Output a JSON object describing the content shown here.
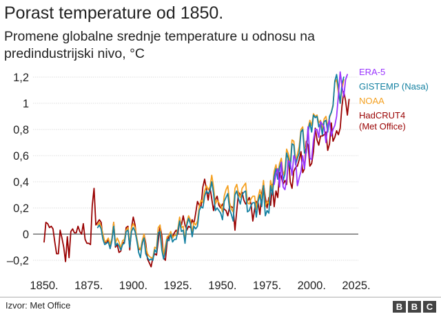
{
  "title": "Porast temperature od 1850.",
  "subtitle": "Promene globalne srednje temperature u odnosu na predindustrijski nivo, °C",
  "source": "Izvor: Met Office",
  "logo_letters": [
    "B",
    "B",
    "C"
  ],
  "chart_data": {
    "type": "line",
    "xlabel": "",
    "ylabel": "",
    "xlim": [
      1850,
      2021
    ],
    "ylim": [
      -0.27,
      1.24
    ],
    "x_ticks": [
      1850,
      1875,
      1900,
      1925,
      1950,
      1975,
      2000,
      2025
    ],
    "x_tick_labels": [
      "1850.",
      "1875.",
      "1900.",
      "1925.",
      "1950.",
      "1975.",
      "2000.",
      "2025."
    ],
    "y_ticks": [
      -0.2,
      0,
      0.2,
      0.4,
      0.6,
      0.8,
      1,
      1.2
    ],
    "y_tick_labels": [
      "–0,2",
      "0",
      "0,2",
      "0,4",
      "0,6",
      "0,8",
      "1",
      "1,2"
    ],
    "legend_position": "right",
    "series": [
      {
        "name": "HadCRUT4",
        "name_extra": "(Met Office)",
        "color": "#990000",
        "x_start": 1850,
        "values": [
          -0.06,
          0.09,
          0.08,
          0.05,
          0.06,
          0.04,
          -0.06,
          -0.15,
          -0.15,
          0.03,
          -0.03,
          -0.1,
          -0.21,
          -0.02,
          -0.18,
          0.02,
          0.04,
          0.01,
          0.01,
          0.06,
          0.02,
          0.0,
          0.08,
          -0.04,
          -0.07,
          -0.07,
          -0.08,
          0.22,
          0.35,
          0.07,
          0.09,
          0.11,
          0.09,
          -0.03,
          -0.06,
          -0.07,
          -0.04,
          -0.11,
          -0.04,
          0.09,
          -0.1,
          -0.08,
          -0.14,
          -0.13,
          -0.07,
          -0.06,
          0.05,
          0.06,
          -0.12,
          0.05,
          0.13,
          0.07,
          -0.05,
          -0.12,
          -0.11,
          -0.08,
          0.0,
          -0.07,
          -0.19,
          -0.22,
          -0.25,
          -0.18,
          -0.15,
          -0.16,
          -0.05,
          0.06,
          -0.01,
          -0.18,
          -0.2,
          -0.06,
          -0.01,
          -0.01,
          -0.02,
          0.01,
          0.03,
          0.0,
          0.1,
          0.07,
          0.14,
          0.07,
          0.03,
          0.06,
          0.05,
          0.11,
          0.08,
          0.16,
          0.25,
          0.22,
          0.21,
          0.36,
          0.42,
          0.34,
          0.26,
          0.36,
          0.27,
          0.18,
          0.26,
          0.29,
          0.22,
          0.2,
          0.23,
          0.19,
          0.18,
          0.14,
          0.21,
          0.21,
          0.2,
          0.03,
          0.18,
          0.32,
          0.3,
          0.32,
          0.26,
          0.23,
          0.25,
          0.28,
          0.23,
          0.1,
          0.19,
          0.25,
          0.24,
          0.15,
          0.31,
          0.39,
          0.28,
          0.2,
          0.28,
          0.22,
          0.38,
          0.21,
          0.33,
          0.28,
          0.47,
          0.44,
          0.38,
          0.41,
          0.38,
          0.6,
          0.4,
          0.35,
          0.48,
          0.51,
          0.52,
          0.57,
          0.63,
          0.47,
          0.5,
          0.71,
          0.68,
          0.52,
          0.54,
          0.63,
          0.81,
          0.72,
          0.68,
          0.75,
          0.75,
          0.76,
          0.78,
          0.64,
          0.69,
          0.85,
          0.71,
          0.74,
          0.79,
          0.76,
          0.81,
          0.98,
          1.09,
          1.02,
          0.91,
          1.03
        ]
      },
      {
        "name": "NOAA",
        "color": "#f4a020",
        "x_start": 1880,
        "values": [
          0.07,
          0.09,
          0.06,
          0.0,
          -0.06,
          -0.05,
          -0.03,
          -0.08,
          -0.03,
          0.09,
          -0.07,
          -0.03,
          -0.06,
          -0.11,
          -0.05,
          -0.04,
          0.03,
          0.05,
          -0.08,
          0.05,
          0.08,
          0.05,
          -0.03,
          -0.1,
          -0.12,
          -0.05,
          0.0,
          -0.1,
          -0.15,
          -0.17,
          -0.18,
          -0.18,
          -0.1,
          -0.11,
          0.05,
          0.07,
          -0.08,
          -0.16,
          -0.09,
          -0.02,
          -0.01,
          0.02,
          -0.03,
          -0.01,
          -0.01,
          0.04,
          0.13,
          0.05,
          0.06,
          -0.05,
          0.09,
          0.14,
          0.11,
          0.01,
          0.09,
          0.07,
          0.1,
          0.21,
          0.26,
          0.24,
          0.33,
          0.37,
          0.34,
          0.36,
          0.45,
          0.36,
          0.23,
          0.26,
          0.24,
          0.22,
          0.17,
          0.29,
          0.34,
          0.37,
          0.24,
          0.19,
          0.17,
          0.35,
          0.38,
          0.31,
          0.28,
          0.35,
          0.37,
          0.39,
          0.24,
          0.23,
          0.27,
          0.29,
          0.29,
          0.19,
          0.28,
          0.34,
          0.27,
          0.41,
          0.21,
          0.25,
          0.23,
          0.41,
          0.34,
          0.48,
          0.53,
          0.45,
          0.54,
          0.58,
          0.45,
          0.49,
          0.65,
          0.61,
          0.54,
          0.72,
          0.71,
          0.56,
          0.61,
          0.67,
          0.8,
          0.82,
          0.66,
          0.66,
          0.81,
          0.87,
          0.83,
          0.92,
          0.9,
          0.91,
          0.85,
          0.87,
          0.8,
          0.88,
          0.9,
          0.82,
          0.89,
          0.93,
          0.99,
          1.16,
          1.18,
          1.08,
          1.0,
          1.11,
          1.18
        ]
      },
      {
        "name": "GISTEMP (Nasa)",
        "color": "#1380a1",
        "x_start": 1880,
        "values": [
          0.05,
          0.07,
          0.04,
          -0.04,
          -0.08,
          -0.07,
          -0.06,
          -0.11,
          -0.05,
          0.06,
          -0.09,
          -0.07,
          -0.09,
          -0.12,
          -0.08,
          -0.07,
          0.02,
          0.03,
          -0.1,
          0.02,
          0.05,
          0.02,
          -0.05,
          -0.14,
          -0.18,
          -0.07,
          -0.03,
          -0.15,
          -0.18,
          -0.2,
          -0.19,
          -0.2,
          -0.12,
          -0.14,
          0.01,
          0.02,
          -0.12,
          -0.19,
          -0.13,
          -0.04,
          -0.05,
          0.0,
          -0.06,
          -0.04,
          -0.04,
          0.02,
          0.1,
          0.02,
          0.03,
          -0.07,
          0.07,
          0.12,
          0.08,
          -0.02,
          0.06,
          0.04,
          0.06,
          0.18,
          0.21,
          0.2,
          0.29,
          0.33,
          0.31,
          0.33,
          0.4,
          0.31,
          0.18,
          0.2,
          0.18,
          0.16,
          0.11,
          0.25,
          0.28,
          0.31,
          0.19,
          0.15,
          0.1,
          0.3,
          0.33,
          0.27,
          0.23,
          0.3,
          0.32,
          0.33,
          0.17,
          0.18,
          0.22,
          0.24,
          0.24,
          0.13,
          0.25,
          0.3,
          0.21,
          0.37,
          0.14,
          0.18,
          0.16,
          0.37,
          0.3,
          0.44,
          0.5,
          0.42,
          0.51,
          0.55,
          0.41,
          0.46,
          0.62,
          0.57,
          0.5,
          0.69,
          0.68,
          0.53,
          0.58,
          0.62,
          0.78,
          0.8,
          0.62,
          0.62,
          0.78,
          0.85,
          0.78,
          0.91,
          0.89,
          0.9,
          0.82,
          0.85,
          0.76,
          0.86,
          0.87,
          0.78,
          0.9,
          0.93,
          0.98,
          1.17,
          1.22,
          1.12,
          1.0,
          1.15,
          1.2
        ]
      },
      {
        "name": "ERA-5",
        "color": "#9933ff",
        "x_start": 1979,
        "values": [
          0.38,
          0.46,
          0.5,
          0.36,
          0.55,
          0.36,
          0.34,
          0.42,
          0.56,
          0.55,
          0.45,
          0.6,
          0.57,
          0.37,
          0.43,
          0.48,
          0.6,
          0.5,
          0.64,
          0.82,
          0.58,
          0.57,
          0.72,
          0.8,
          0.8,
          0.74,
          0.86,
          0.84,
          0.82,
          0.7,
          0.83,
          0.87,
          0.75,
          0.8,
          0.83,
          0.9,
          1.06,
          1.24,
          1.13,
          1.05,
          1.18,
          1.22
        ]
      }
    ]
  }
}
